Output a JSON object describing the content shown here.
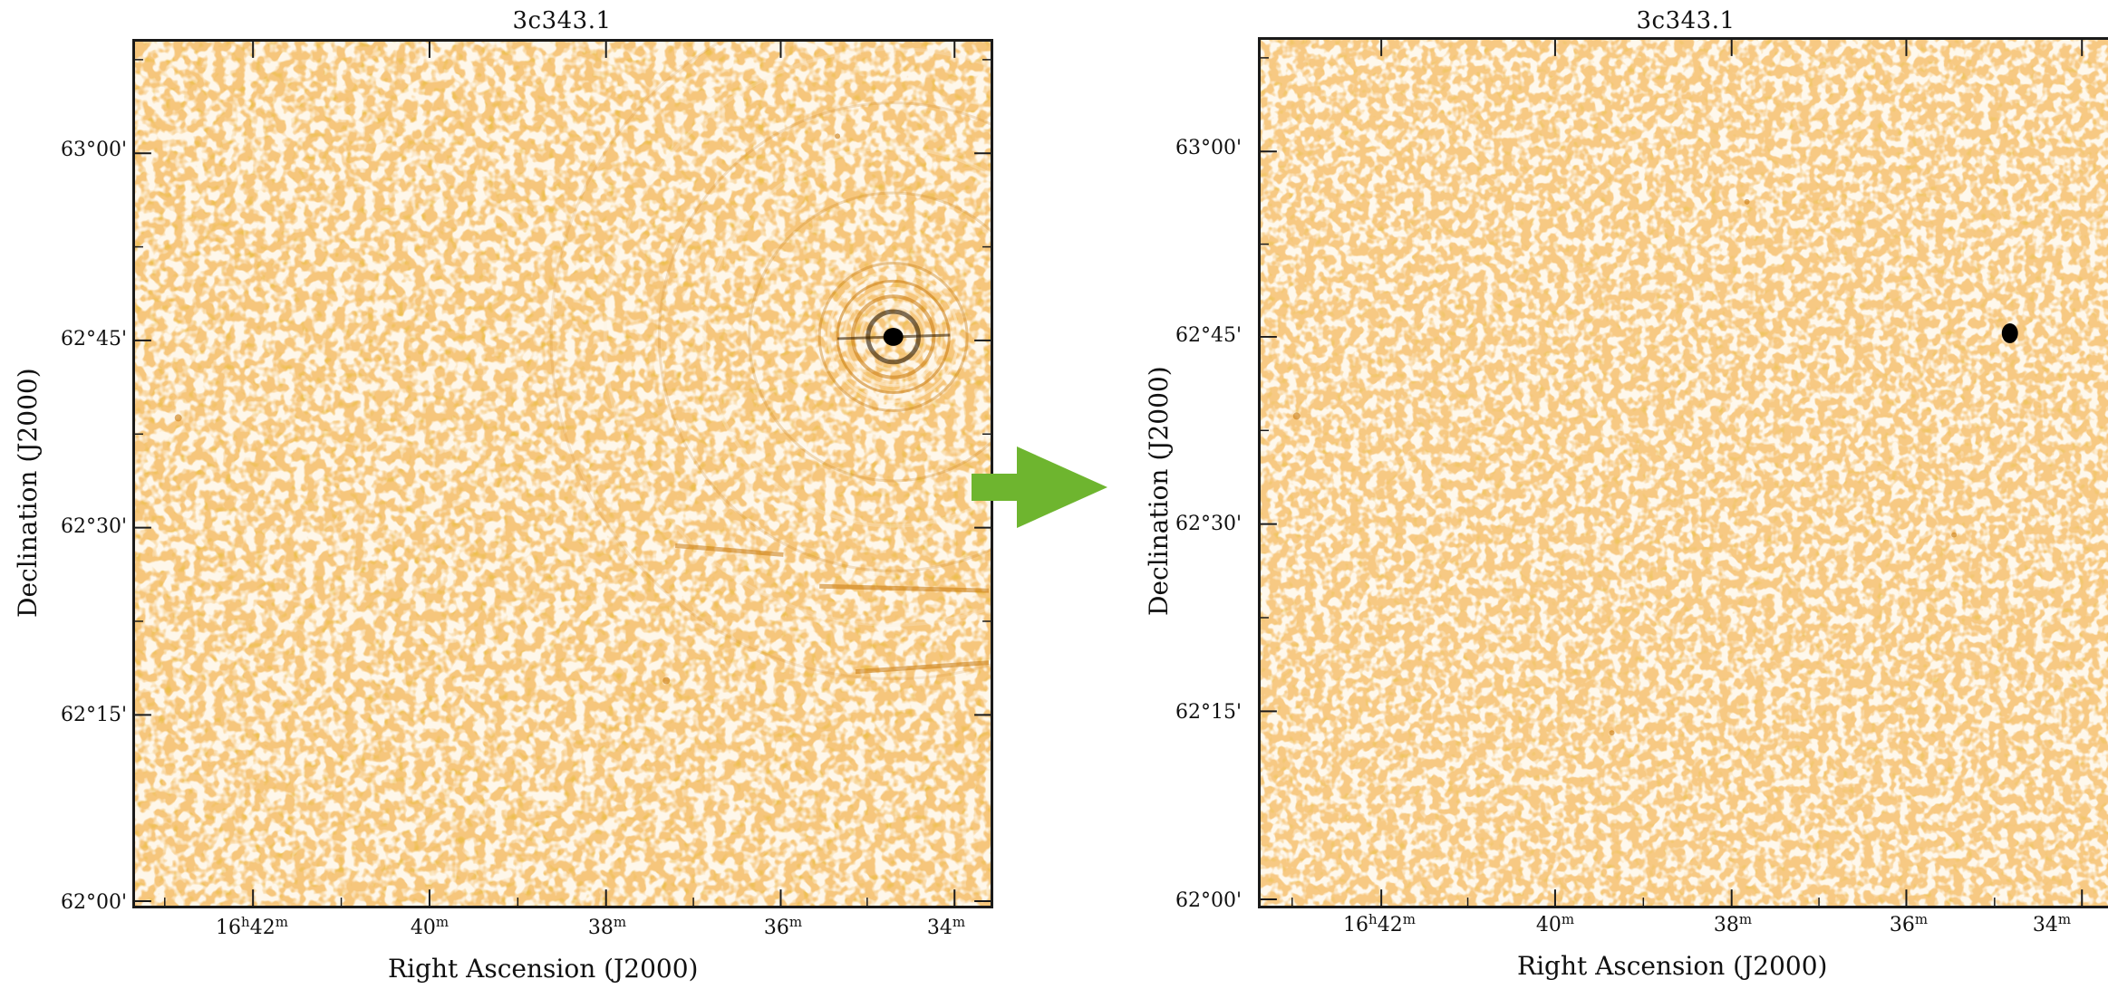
{
  "left_panel": {
    "title": "3c343.1",
    "ylabel": "Declination (J2000)",
    "xlabel": "Right Ascension (J2000)",
    "yticks": [
      "63°00'",
      "62°45'",
      "62°30'",
      "62°15'",
      "62°00'"
    ],
    "xticks": [
      {
        "main": "16",
        "sup": "h",
        "rest": "42",
        "sup2": "m"
      },
      {
        "main": "40",
        "sup": "m",
        "rest": "",
        "sup2": ""
      },
      {
        "main": "38",
        "sup": "m",
        "rest": "",
        "sup2": ""
      },
      {
        "main": "36",
        "sup": "m",
        "rest": "",
        "sup2": ""
      },
      {
        "main": "34",
        "sup": "m",
        "rest": "",
        "sup2": ""
      }
    ]
  },
  "right_panel": {
    "title": "3c343.1",
    "ylabel": "Declination (J2000)",
    "xlabel": "Right Ascension (J2000)",
    "yticks": [
      "63°00'",
      "62°45'",
      "62°30'",
      "62°15'",
      "62°00'"
    ],
    "xticks": [
      {
        "main": "16",
        "sup": "h",
        "rest": "42",
        "sup2": "m"
      },
      {
        "main": "40",
        "sup": "m",
        "rest": "",
        "sup2": ""
      },
      {
        "main": "38",
        "sup": "m",
        "rest": "",
        "sup2": ""
      },
      {
        "main": "36",
        "sup": "m",
        "rest": "",
        "sup2": ""
      },
      {
        "main": "34",
        "sup": "m",
        "rest": "",
        "sup2": ""
      }
    ]
  },
  "colors": {
    "image_base": "#f6c67c",
    "image_light": "#fdf1dc",
    "image_dark": "#d98a16",
    "arrow": "#6eb52f",
    "frame": "#1a1a1a"
  },
  "icons": {
    "transition": "arrow-right-icon"
  }
}
